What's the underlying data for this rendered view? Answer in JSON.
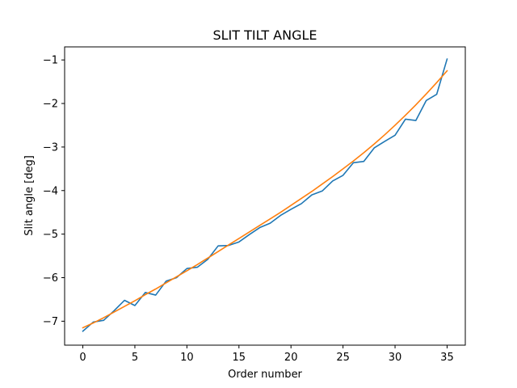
{
  "chart_data": {
    "type": "line",
    "title": "SLIT TILT ANGLE",
    "xlabel": "Order number",
    "ylabel": "Slit angle [deg]",
    "xlim": [
      -1.75,
      36.75
    ],
    "ylim": [
      -7.55,
      -0.7
    ],
    "xticks": [
      0,
      5,
      10,
      15,
      20,
      25,
      30,
      35
    ],
    "xtick_labels": [
      "0",
      "5",
      "10",
      "15",
      "20",
      "25",
      "30",
      "35"
    ],
    "yticks": [
      -7,
      -6,
      -5,
      -4,
      -3,
      -2,
      -1
    ],
    "ytick_labels": [
      "−7",
      "−6",
      "−5",
      "−4",
      "−3",
      "−2",
      "−1"
    ],
    "grid": false,
    "legend": "none",
    "series": [
      {
        "color": "#1f77b4",
        "x": [
          0,
          1,
          2,
          3,
          4,
          5,
          6,
          7,
          8,
          9,
          10,
          11,
          12,
          13,
          14,
          15,
          16,
          17,
          18,
          19,
          20,
          21,
          22,
          23,
          24,
          25,
          26,
          27,
          28,
          29,
          30,
          31,
          32,
          33,
          34,
          35
        ],
        "y": [
          -7.23,
          -7.02,
          -6.98,
          -6.76,
          -6.52,
          -6.64,
          -6.34,
          -6.4,
          -6.08,
          -6.0,
          -5.79,
          -5.76,
          -5.58,
          -5.27,
          -5.26,
          -5.18,
          -5.01,
          -4.85,
          -4.75,
          -4.57,
          -4.43,
          -4.3,
          -4.1,
          -4.01,
          -3.78,
          -3.65,
          -3.36,
          -3.33,
          -3.02,
          -2.87,
          -2.73,
          -2.36,
          -2.39,
          -1.93,
          -1.79,
          -0.98
        ]
      },
      {
        "color": "#ff7f0e",
        "x": [
          0,
          1,
          2,
          3,
          4,
          5,
          6,
          7,
          8,
          9,
          10,
          11,
          12,
          13,
          14,
          15,
          16,
          17,
          18,
          19,
          20,
          21,
          22,
          23,
          24,
          25,
          26,
          27,
          28,
          29,
          30,
          31,
          32,
          33,
          34,
          35
        ],
        "y": [
          -7.15,
          -7.04,
          -6.92,
          -6.79,
          -6.66,
          -6.53,
          -6.39,
          -6.26,
          -6.12,
          -5.98,
          -5.84,
          -5.7,
          -5.55,
          -5.4,
          -5.25,
          -5.1,
          -4.95,
          -4.8,
          -4.65,
          -4.5,
          -4.34,
          -4.18,
          -4.02,
          -3.85,
          -3.68,
          -3.5,
          -3.32,
          -3.13,
          -2.93,
          -2.72,
          -2.5,
          -2.27,
          -2.03,
          -1.78,
          -1.52,
          -1.25
        ]
      }
    ]
  }
}
